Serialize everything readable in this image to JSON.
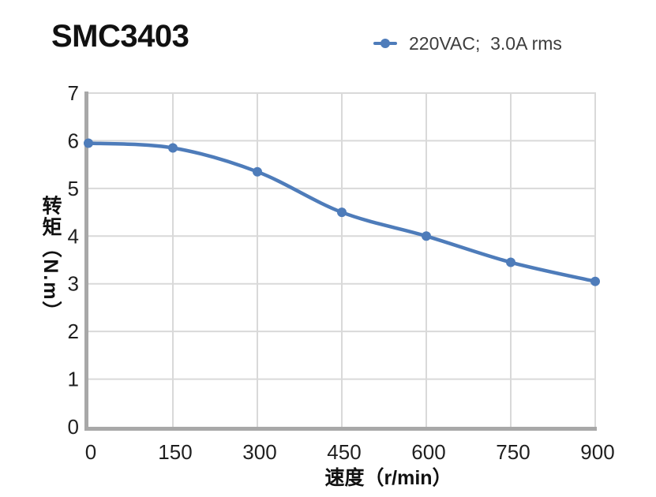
{
  "header": {
    "title": "SMC3403"
  },
  "chart_data": {
    "type": "line",
    "title": "SMC3403",
    "xlabel": "速度（r/min）",
    "ylabel": "转矩（N.m）",
    "x": [
      0,
      150,
      300,
      450,
      600,
      750,
      900
    ],
    "series": [
      {
        "name": "220VAC;  3.0A rms",
        "values": [
          5.95,
          5.85,
          5.35,
          4.5,
          4.0,
          3.45,
          3.05
        ],
        "color": "#4E7CBA"
      }
    ],
    "xlim": [
      0,
      900
    ],
    "ylim": [
      0,
      7
    ],
    "x_ticks": [
      0,
      150,
      300,
      450,
      600,
      750,
      900
    ],
    "y_ticks": [
      0,
      1,
      2,
      3,
      4,
      5,
      6,
      7
    ],
    "grid": true,
    "line_smooth": true,
    "marker": "circle",
    "legend_position": "top-right",
    "colors": {
      "line": "#4E7CBA",
      "gridline": "#D9D9D9",
      "axis": "#A8A8A8",
      "tick_label": "#1F1F1F",
      "title": "#111111",
      "legend_text": "#3D3D3D"
    }
  }
}
